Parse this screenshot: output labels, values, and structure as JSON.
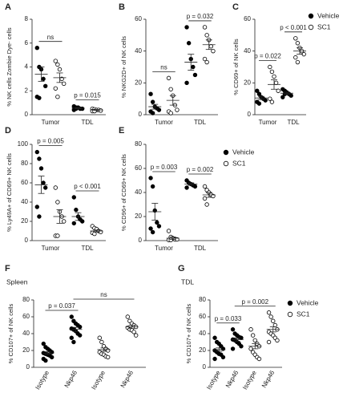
{
  "chart_data": [
    {
      "type": "strip",
      "label": "A",
      "ylabel": "% NK cells Zombie Dye- cells",
      "ylim": [
        0,
        8
      ],
      "yticks": [
        0,
        2,
        4,
        6,
        8
      ],
      "categories": [
        "Tumor",
        "TDL"
      ],
      "series": [
        {
          "marker": "filled",
          "color": "#000000",
          "values": [
            [
              5.6,
              4.0,
              3.8,
              3.0,
              2.4,
              1.5,
              1.4
            ],
            [
              0.7,
              0.6,
              0.6,
              0.5,
              0.5,
              0.4,
              0.5
            ]
          ],
          "means": [
            3.4,
            0.55
          ],
          "sems": [
            0.6,
            0.04
          ]
        },
        {
          "marker": "open",
          "color": "#000000",
          "values": [
            [
              4.5,
              4.2,
              3.8,
              3.0,
              2.6,
              2.2,
              1.5
            ],
            [
              0.5,
              0.45,
              0.4,
              0.4,
              0.35,
              0.3,
              0.3
            ]
          ],
          "means": [
            3.1,
            0.4
          ],
          "sems": [
            0.4,
            0.03
          ]
        }
      ],
      "annotations": [
        {
          "text": "ns",
          "span": [
            0,
            0
          ]
        },
        {
          "text": "p = 0.015",
          "span": [
            1,
            1
          ]
        }
      ]
    },
    {
      "type": "strip",
      "label": "B",
      "ylabel": "% NKG2D+ of NK cells",
      "ylim": [
        0,
        60
      ],
      "yticks": [
        0,
        20,
        40,
        60
      ],
      "categories": [
        "Tumor",
        "TDL"
      ],
      "series": [
        {
          "marker": "filled",
          "color": "#000000",
          "values": [
            [
              13,
              8,
              5,
              4,
              3,
              2,
              1
            ],
            [
              55,
              45,
              35,
              30,
              25,
              20
            ]
          ],
          "means": [
            5,
            33
          ],
          "sems": [
            1.5,
            5
          ]
        },
        {
          "marker": "open",
          "color": "#000000",
          "values": [
            [
              23,
              16,
              12,
              6,
              3,
              2,
              1
            ],
            [
              55,
              50,
              47,
              43,
              40,
              35,
              33
            ]
          ],
          "means": [
            9,
            44
          ],
          "sems": [
            3,
            3
          ]
        }
      ],
      "annotations": [
        {
          "text": "ns",
          "span": [
            0,
            0
          ]
        },
        {
          "text": "p = 0.032",
          "span": [
            1,
            1
          ]
        }
      ]
    },
    {
      "type": "strip",
      "label": "C",
      "ylabel": "% CD69+ of NK cells",
      "ylim": [
        0,
        60
      ],
      "yticks": [
        0,
        20,
        40,
        60
      ],
      "categories": [
        "Tumor",
        "TDL"
      ],
      "legend": true,
      "series": [
        {
          "name": "Vehicle",
          "marker": "filled",
          "color": "#000000",
          "values": [
            [
              15,
              13,
              11,
              10,
              9,
              8,
              7
            ],
            [
              16,
              15,
              14,
              13,
              12,
              11,
              13
            ]
          ],
          "means": [
            10.5,
            13.5
          ],
          "sems": [
            1,
            0.7
          ]
        },
        {
          "name": "SC1",
          "marker": "open",
          "color": "#000000",
          "values": [
            [
              30,
              27,
              24,
              20,
              15,
              10,
              8
            ],
            [
              48,
              45,
              42,
              40,
              38,
              36,
              33
            ]
          ],
          "means": [
            19,
            40
          ],
          "sems": [
            3,
            2
          ]
        }
      ],
      "annotations": [
        {
          "text": "p = 0.022",
          "span": [
            0,
            0
          ]
        },
        {
          "text": "p < 0.001",
          "span": [
            1,
            1
          ]
        }
      ]
    },
    {
      "type": "strip",
      "label": "D",
      "ylabel": "% Ly49A+ of CD69+ NK cells",
      "ylim": [
        0,
        100
      ],
      "yticks": [
        0,
        20,
        40,
        60,
        80,
        100
      ],
      "categories": [
        "Tumor",
        "TDL"
      ],
      "series": [
        {
          "marker": "filled",
          "color": "#000000",
          "values": [
            [
              92,
              85,
              75,
              60,
              55,
              35,
              25
            ],
            [
              45,
              32,
              25,
              22,
              20,
              18
            ]
          ],
          "means": [
            58,
            25
          ],
          "sems": [
            9,
            4
          ]
        },
        {
          "marker": "open",
          "color": "#000000",
          "values": [
            [
              55,
              40,
              30,
              25,
              20,
              5,
              5
            ],
            [
              15,
              13,
              12,
              10,
              9,
              8,
              7
            ]
          ],
          "means": [
            25,
            10
          ],
          "sems": [
            7,
            1
          ]
        }
      ],
      "annotations": [
        {
          "text": "p = 0.005",
          "span": [
            0,
            0
          ]
        },
        {
          "text": "p < 0.001",
          "span": [
            1,
            1
          ]
        }
      ]
    },
    {
      "type": "strip",
      "label": "E",
      "ylabel": "% CD96+ of CD69+ NK cells",
      "ylim": [
        0,
        80
      ],
      "yticks": [
        0,
        20,
        40,
        60,
        80
      ],
      "categories": [
        "Tumor",
        "TDL"
      ],
      "legend": true,
      "series": [
        {
          "name": "Vehicle",
          "marker": "filled",
          "color": "#000000",
          "values": [
            [
              52,
              45,
              25,
              15,
              12,
              10,
              7
            ],
            [
              50,
              48,
              47,
              46,
              45,
              44
            ]
          ],
          "means": [
            24,
            47
          ],
          "sems": [
            7,
            1
          ]
        },
        {
          "name": "SC1",
          "marker": "open",
          "color": "#000000",
          "values": [
            [
              8,
              3,
              2,
              1,
              1,
              0.5,
              0.5
            ],
            [
              45,
              42,
              40,
              38,
              37,
              35,
              30
            ]
          ],
          "means": [
            2,
            38
          ],
          "sems": [
            1,
            2
          ]
        }
      ],
      "annotations": [
        {
          "text": "p = 0.003",
          "span": [
            0,
            0
          ]
        },
        {
          "text": "p = 0.002",
          "span": [
            1,
            1
          ]
        }
      ]
    },
    {
      "type": "strip",
      "label": "F",
      "subtitle": "Spleen",
      "ylabel": "% CD107+ of NK cells",
      "ylim": [
        0,
        80
      ],
      "yticks": [
        0,
        20,
        40,
        60,
        80
      ],
      "categories": [
        "Isotype",
        "Nkp46",
        "Isotype",
        "Nkp46"
      ],
      "series": [
        {
          "marker": "filled",
          "color": "#000000",
          "values": [
            [
              28,
              24,
              22,
              20,
              18,
              17,
              16,
              15,
              14,
              12,
              10,
              8
            ],
            [
              60,
              55,
              52,
              50,
              48,
              46,
              45,
              43,
              40,
              38,
              35,
              30
            ],
            null,
            null
          ],
          "means": [
            17,
            45,
            null,
            null
          ],
          "sems": [
            1.5,
            2.5,
            null,
            null
          ]
        },
        {
          "marker": "open",
          "color": "#000000",
          "values": [
            null,
            null,
            [
              35,
              30,
              25,
              22,
              20,
              18,
              16,
              15,
              13,
              12
            ],
            [
              60,
              55,
              52,
              50,
              48,
              47,
              45,
              44,
              42,
              38
            ]
          ],
          "means": [
            null,
            null,
            21,
            48
          ],
          "sems": [
            null,
            null,
            2,
            2
          ]
        }
      ],
      "annotations": [
        {
          "text": "p = 0.037",
          "span": [
            0,
            1
          ]
        },
        {
          "text": "ns",
          "span": [
            1,
            3
          ]
        }
      ]
    },
    {
      "type": "strip",
      "label": "G",
      "subtitle": "TDL",
      "ylabel": "% CD107+ of NK cells",
      "ylim": [
        0,
        80
      ],
      "yticks": [
        0,
        20,
        40,
        60,
        80
      ],
      "categories": [
        "Isotype",
        "Nkp46",
        "Isotype",
        "Nkp46"
      ],
      "legend": true,
      "series": [
        {
          "name": "Vehicle",
          "marker": "filled",
          "color": "#000000",
          "values": [
            [
              35,
              30,
              28,
              25,
              22,
              20,
              18,
              16,
              15,
              12,
              10
            ],
            [
              45,
              40,
              38,
              36,
              35,
              33,
              32,
              30,
              28,
              25,
              22
            ],
            null,
            null
          ],
          "means": [
            21,
            33,
            null,
            null
          ],
          "sems": [
            2,
            2,
            null,
            null
          ]
        },
        {
          "name": "SC1",
          "marker": "open",
          "color": "#000000",
          "values": [
            null,
            null,
            [
              45,
              38,
              32,
              28,
              25,
              22,
              18,
              15,
              12,
              10
            ],
            [
              65,
              60,
              55,
              50,
              45,
              42,
              40,
              38,
              35,
              32,
              30
            ]
          ],
          "means": [
            null,
            null,
            25,
            45
          ],
          "sems": [
            null,
            null,
            3,
            3
          ]
        }
      ],
      "annotations": [
        {
          "text": "p = 0.033",
          "span": [
            0,
            1
          ]
        },
        {
          "text": "p = 0.002",
          "span": [
            1,
            3
          ]
        }
      ]
    }
  ]
}
